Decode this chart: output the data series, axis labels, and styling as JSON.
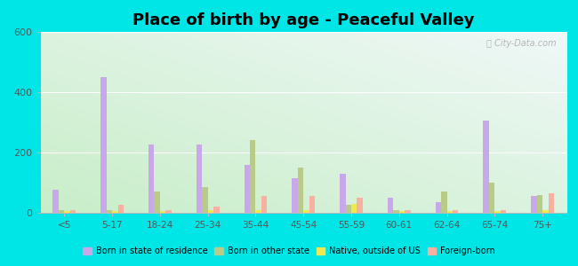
{
  "title": "Place of birth by age - Peaceful Valley",
  "categories": [
    "<5",
    "5-17",
    "18-24",
    "25-34",
    "35-44",
    "45-54",
    "55-59",
    "60-61",
    "62-64",
    "65-74",
    "75+"
  ],
  "series": {
    "Born in state of residence": [
      75,
      450,
      225,
      225,
      160,
      115,
      130,
      50,
      35,
      305,
      55
    ],
    "Born in other state": [
      10,
      10,
      70,
      85,
      240,
      150,
      25,
      10,
      70,
      100,
      60
    ],
    "Native, outside of US": [
      5,
      5,
      5,
      10,
      10,
      10,
      30,
      5,
      5,
      5,
      10
    ],
    "Foreign-born": [
      10,
      25,
      10,
      20,
      55,
      55,
      50,
      10,
      10,
      10,
      65
    ]
  },
  "colors": {
    "Born in state of residence": "#c8a8e8",
    "Born in other state": "#b8cc88",
    "Native, outside of US": "#f0e850",
    "Foreign-born": "#f8b0a0"
  },
  "ylim": [
    0,
    600
  ],
  "yticks": [
    0,
    200,
    400,
    600
  ],
  "background_color": "#00e5e5",
  "title_fontsize": 13,
  "bar_width": 0.12,
  "watermark": "City-Data.com"
}
